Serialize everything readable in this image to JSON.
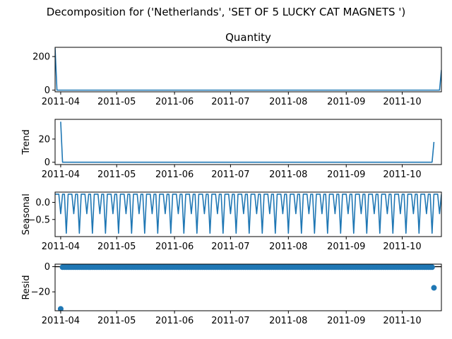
{
  "figure": {
    "suptitle": "Decomposition for ('Netherlands', 'SET OF 5 LUCKY CAT MAGNETS ')"
  },
  "chart_data": [
    {
      "type": "line",
      "panel": "observed",
      "title": "Quantity",
      "ylabel": "",
      "xlim": [
        "2011-03-29",
        "2011-10-22"
      ],
      "ylim": [
        -10,
        255
      ],
      "yticks": [
        0,
        200
      ],
      "x_ticks": [
        "2011-04",
        "2011-05",
        "2011-06",
        "2011-07",
        "2011-08",
        "2011-09",
        "2011-10"
      ],
      "color": "#1f77b4",
      "series": [
        {
          "x": [
            "2011-03-29",
            "2011-03-30",
            "2011-10-20",
            "2011-10-21",
            "2011-10-22"
          ],
          "values": [
            250,
            0,
            0,
            0,
            120
          ]
        }
      ]
    },
    {
      "type": "line",
      "panel": "trend",
      "title": "",
      "ylabel": "Trend",
      "xlim": [
        "2011-03-29",
        "2011-10-22"
      ],
      "ylim": [
        -2,
        37
      ],
      "yticks": [
        0,
        20
      ],
      "x_ticks": [
        "2011-04",
        "2011-05",
        "2011-06",
        "2011-07",
        "2011-08",
        "2011-09",
        "2011-10"
      ],
      "color": "#1f77b4",
      "series": [
        {
          "x": [
            "2011-04-01",
            "2011-04-02",
            "2011-10-17",
            "2011-10-18"
          ],
          "values": [
            35,
            0,
            0,
            17.5
          ]
        }
      ]
    },
    {
      "type": "line",
      "panel": "seasonal",
      "title": "",
      "ylabel": "Seasonal",
      "xlim": [
        "2011-03-29",
        "2011-10-22"
      ],
      "ylim": [
        -1.0,
        0.3
      ],
      "yticks": [
        0.0,
        -0.5
      ],
      "ytick_labels": [
        "0.0",
        "−0.5"
      ],
      "x_ticks": [
        "2011-04",
        "2011-05",
        "2011-06",
        "2011-07",
        "2011-08",
        "2011-09",
        "2011-10"
      ],
      "color": "#1f77b4",
      "period_days": 7,
      "pattern": [
        0.24,
        0.24,
        0.24,
        -0.33,
        0.24,
        0.24,
        -0.9
      ]
    },
    {
      "type": "scatter",
      "panel": "resid",
      "title": "",
      "ylabel": "Resid",
      "xlim": [
        "2011-03-29",
        "2011-10-22"
      ],
      "ylim": [
        -35,
        2
      ],
      "yticks": [
        0,
        -20
      ],
      "ytick_labels": [
        "0",
        "−20"
      ],
      "x_ticks": [
        "2011-04",
        "2011-05",
        "2011-06",
        "2011-07",
        "2011-08",
        "2011-09",
        "2011-10"
      ],
      "color": "#1f77b4",
      "baseline": 0,
      "points": {
        "first": {
          "x": "2011-04-01",
          "y": -33.5
        },
        "bulk": {
          "from": "2011-04-02",
          "to": "2011-10-17",
          "y": -0.4
        },
        "last": {
          "x": "2011-10-18",
          "y": -16.8
        }
      }
    }
  ]
}
